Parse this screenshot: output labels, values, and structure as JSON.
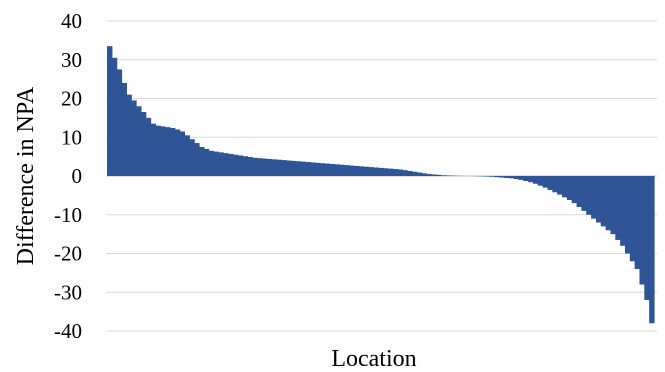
{
  "chart_data": {
    "type": "bar",
    "title": "",
    "xlabel": "Location",
    "ylabel": "Difference in NPA",
    "ylim": [
      -40,
      40
    ],
    "yticks": [
      40,
      30,
      20,
      10,
      0,
      -10,
      -20,
      -30,
      -40
    ],
    "ytick_labels": [
      "40",
      "30",
      "20",
      "10",
      "0",
      "-10",
      "-20",
      "-30",
      "-40"
    ],
    "grid": true,
    "legend": "none",
    "series": [
      {
        "color": "#2f5597",
        "values": [
          33.5,
          30.5,
          27.5,
          24.0,
          21.0,
          19.5,
          18.0,
          16.5,
          15.0,
          13.5,
          13.0,
          12.8,
          12.6,
          12.4,
          12.0,
          11.5,
          10.5,
          9.5,
          8.5,
          7.5,
          7.0,
          6.5,
          6.3,
          6.1,
          5.9,
          5.7,
          5.5,
          5.3,
          5.1,
          4.9,
          4.7,
          4.6,
          4.5,
          4.4,
          4.3,
          4.2,
          4.1,
          4.0,
          3.9,
          3.8,
          3.7,
          3.6,
          3.5,
          3.4,
          3.3,
          3.2,
          3.1,
          3.0,
          2.9,
          2.8,
          2.7,
          2.6,
          2.5,
          2.4,
          2.3,
          2.2,
          2.1,
          2.0,
          1.9,
          1.8,
          1.7,
          1.5,
          1.3,
          1.1,
          0.9,
          0.7,
          0.5,
          0.4,
          0.3,
          0.2,
          0.15,
          0.1,
          0.05,
          0.02,
          0.0,
          -0.02,
          -0.05,
          -0.1,
          -0.15,
          -0.2,
          -0.3,
          -0.4,
          -0.5,
          -0.6,
          -0.8,
          -1.0,
          -1.3,
          -1.6,
          -2.0,
          -2.5,
          -3.0,
          -3.6,
          -4.2,
          -4.8,
          -5.5,
          -6.2,
          -7.0,
          -8.0,
          -9.0,
          -10.0,
          -11.0,
          -12.0,
          -13.0,
          -14.0,
          -15.0,
          -16.5,
          -18.0,
          -20.0,
          -22.0,
          -24.0,
          -28.0,
          -32.0,
          -38.0
        ]
      }
    ]
  }
}
